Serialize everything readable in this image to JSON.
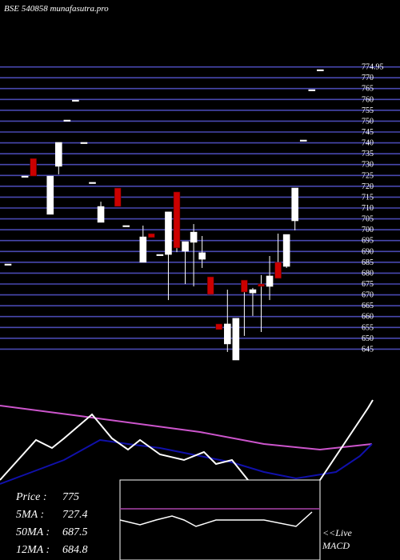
{
  "chart_data": [
    {
      "type": "candlestick",
      "title": "BSE 540858 munafasutra.pro",
      "ylim": [
        640,
        780
      ],
      "yticks": [
        645,
        650,
        655,
        660,
        665,
        670,
        675,
        680,
        685,
        690,
        695,
        700,
        705,
        710,
        715,
        720,
        725,
        730,
        735,
        740,
        745,
        750,
        755,
        760,
        765,
        770,
        {
          "value": 774.95,
          "label": "774.95"
        }
      ],
      "up_color": "#ffffff",
      "down_color": "#cc0000",
      "grid": true,
      "candles": [
        {
          "open": 684.2,
          "high": 684.2,
          "low": 684.2,
          "close": 684.2
        },
        null,
        {
          "open": 724.7,
          "high": 724.7,
          "low": 724.7,
          "close": 724.7
        },
        {
          "open": 732.8,
          "high": 732.8,
          "low": 724.7,
          "close": 724.7
        },
        null,
        {
          "open": 707.1,
          "high": 724.7,
          "low": 707.1,
          "close": 724.7
        },
        {
          "open": 729.2,
          "high": 740.2,
          "low": 725.5,
          "close": 740.2
        },
        {
          "open": 750.5,
          "high": 750.5,
          "low": 750.5,
          "close": 750.5
        },
        {
          "open": 759.7,
          "high": 759.7,
          "low": 759.7,
          "close": 759.7
        },
        {
          "open": 740.2,
          "high": 740.2,
          "low": 740.2,
          "close": 740.2
        },
        {
          "open": 721.8,
          "high": 721.8,
          "low": 721.8,
          "close": 721.8
        },
        {
          "open": 703.4,
          "high": 712.9,
          "low": 703.4,
          "close": 710.7
        },
        null,
        {
          "open": 719.2,
          "high": 719.2,
          "low": 710.7,
          "close": 710.7
        },
        {
          "open": 701.9,
          "high": 701.9,
          "low": 701.9,
          "close": 701.9
        },
        null,
        {
          "open": 685.0,
          "high": 701.9,
          "low": 685.0,
          "close": 696.7
        },
        {
          "open": 698.2,
          "high": 698.2,
          "low": 696.4,
          "close": 696.4
        },
        {
          "open": 688.6,
          "high": 688.6,
          "low": 688.6,
          "close": 688.6
        },
        {
          "open": 688.6,
          "high": 708.2,
          "low": 667.6,
          "close": 708.2
        },
        {
          "open": 717.4,
          "high": 717.4,
          "low": 689.7,
          "close": 691.6
        },
        {
          "open": 690.1,
          "high": 694.5,
          "low": 675.0,
          "close": 694.5
        },
        {
          "open": 694.2,
          "high": 702.6,
          "low": 673.9,
          "close": 698.9
        },
        {
          "open": 686.4,
          "high": 697.1,
          "low": 682.4,
          "close": 689.4
        },
        {
          "open": 678.3,
          "high": 678.3,
          "low": 670.2,
          "close": 670.2
        },
        {
          "open": 656.6,
          "high": 656.6,
          "low": 654.0,
          "close": 654.0
        },
        {
          "open": 647.4,
          "high": 672.4,
          "low": 643.7,
          "close": 656.6
        },
        {
          "open": 640.0,
          "high": 659.2,
          "low": 640.0,
          "close": 659.2
        },
        {
          "open": 676.8,
          "high": 676.8,
          "low": 651.1,
          "close": 671.3
        },
        {
          "open": 670.9,
          "high": 673.2,
          "low": 660.3,
          "close": 672.4
        },
        {
          "open": 675.0,
          "high": 679.1,
          "low": 652.9,
          "close": 673.9
        },
        {
          "open": 673.9,
          "high": 687.9,
          "low": 667.6,
          "close": 678.7
        },
        {
          "open": 685.0,
          "high": 698.2,
          "low": 677.6,
          "close": 677.6
        },
        {
          "open": 683.1,
          "high": 697.8,
          "low": 682.4,
          "close": 697.8
        },
        {
          "open": 704.1,
          "high": 719.2,
          "low": 699.7,
          "close": 719.2
        },
        {
          "open": 741.3,
          "high": 741.3,
          "low": 741.3,
          "close": 741.3
        },
        {
          "open": 764.5,
          "high": 764.5,
          "low": 764.5,
          "close": 764.5
        },
        {
          "open": 773.7,
          "high": 773.7,
          "low": 773.7,
          "close": 773.7
        }
      ]
    },
    {
      "type": "line",
      "xlim": [
        0,
        500
      ],
      "ylim": [
        0,
        210
      ],
      "series": [
        {
          "color": "#cc55cc",
          "x": [
            0,
            100,
            250,
            330,
            400,
            465
          ],
          "values": [
            193,
            180,
            160,
            145,
            138,
            145
          ]
        },
        {
          "color": "#1010aa",
          "x": [
            0,
            40,
            80,
            125,
            160,
            200,
            250,
            290,
            330,
            370,
            420,
            450,
            465
          ],
          "values": [
            95,
            110,
            125,
            150,
            145,
            140,
            130,
            122,
            110,
            102,
            110,
            130,
            145
          ]
        },
        {
          "color": "#ffffff",
          "x": [
            0,
            45,
            65,
            80,
            115,
            140,
            160,
            175,
            200,
            230,
            255,
            270,
            290,
            310,
            340,
            400,
            430,
            460,
            466
          ],
          "values": [
            100,
            150,
            140,
            152,
            182,
            152,
            138,
            150,
            132,
            125,
            135,
            120,
            125,
            100,
            60,
            100,
            145,
            190,
            200
          ]
        }
      ],
      "legend": [
        {
          "label": "Price :",
          "value": 775
        },
        {
          "label": "5MA :",
          "value": 727.4
        },
        {
          "label": "50MA :",
          "value": 687.5
        },
        {
          "label": "12MA :",
          "value": 684.8
        }
      ]
    },
    {
      "type": "macd",
      "title": "<<Live MACD",
      "xlim": [
        150,
        400
      ],
      "ylim": [
        -50,
        50
      ],
      "signal": 14,
      "signal_color": "#aa44aa",
      "x": [
        150,
        175,
        195,
        215,
        230,
        245,
        270,
        330,
        370,
        390
      ],
      "values": [
        0,
        -6,
        0,
        5,
        0,
        -8,
        0,
        0,
        -8,
        10
      ]
    }
  ]
}
